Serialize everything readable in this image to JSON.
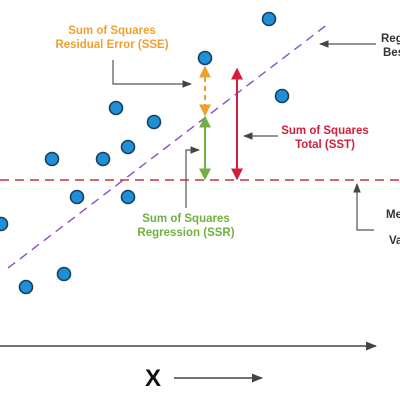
{
  "labels": {
    "sse_line1": "Sum of Squares",
    "sse_line2": "Residual Error (SSE)",
    "sst_line1": "Sum of Squares",
    "sst_line2": "Total (SST)",
    "ssr_line1": "Sum of Squares",
    "ssr_line2": "Regression (SSR)",
    "best_fit_line1": "Reg",
    "best_fit_line2": "Bes",
    "mean_line1": "Me",
    "mean_line2": "Va",
    "x_axis": "X"
  },
  "colors": {
    "sse": "#f0a030",
    "sst": "#d0203a",
    "ssr": "#70b040",
    "point_fill": "#1f8fd8",
    "point_stroke": "#1a3f5c",
    "regression_line": "#8a4fc4",
    "mean_line": "#c8303a",
    "axis": "#444444",
    "connector": "#555555"
  }
}
